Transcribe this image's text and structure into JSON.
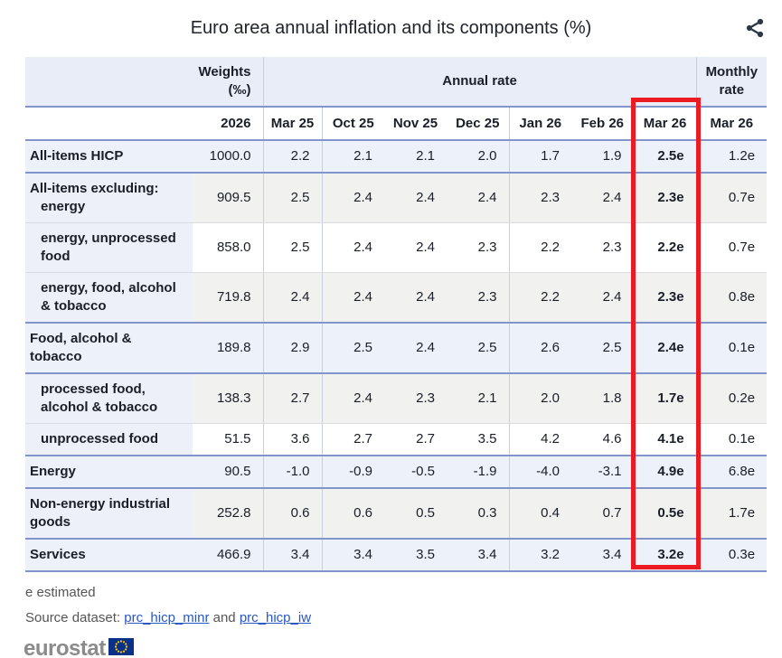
{
  "page": {
    "title": "Euro area annual inflation and its components (%)"
  },
  "chart_data": {
    "type": "table",
    "title": "Euro area annual inflation and its components (%)",
    "header_groups": {
      "weights": "Weights\n(‰)",
      "annual": "Annual rate",
      "monthly": "Monthly\nrate"
    },
    "weights_year": "2026",
    "annual_months": [
      "Mar 25",
      "Oct 25",
      "Nov 25",
      "Dec 25",
      "Jan 26",
      "Feb 26",
      "Mar 26"
    ],
    "monthly_month": "Mar 26",
    "highlighted_column": "Mar 26",
    "rows": [
      {
        "label": "All-items HICP",
        "indent": 0,
        "hang": false,
        "style": "blue",
        "weight": "1000.0",
        "annual": [
          "2.2",
          "2.1",
          "2.1",
          "2.0",
          "1.7",
          "1.9",
          "2.5e"
        ],
        "monthly": "1.2e"
      },
      {
        "label": "All-items excluding:\nenergy",
        "indent": 0,
        "hang": true,
        "style": "gray",
        "weight": "909.5",
        "annual": [
          "2.5",
          "2.4",
          "2.4",
          "2.4",
          "2.3",
          "2.4",
          "2.3e"
        ],
        "monthly": "0.7e"
      },
      {
        "label": "energy, unprocessed food",
        "indent": 1,
        "hang": false,
        "style": "white",
        "weight": "858.0",
        "annual": [
          "2.5",
          "2.4",
          "2.4",
          "2.3",
          "2.2",
          "2.3",
          "2.2e"
        ],
        "monthly": "0.7e"
      },
      {
        "label": "energy, food, alcohol & tobacco",
        "indent": 1,
        "hang": false,
        "style": "gray",
        "weight": "719.8",
        "annual": [
          "2.4",
          "2.4",
          "2.4",
          "2.3",
          "2.2",
          "2.4",
          "2.3e"
        ],
        "monthly": "0.8e"
      },
      {
        "label": "Food, alcohol & tobacco",
        "indent": 0,
        "hang": false,
        "style": "blue",
        "weight": "189.8",
        "annual": [
          "2.9",
          "2.5",
          "2.4",
          "2.5",
          "2.6",
          "2.5",
          "2.4e"
        ],
        "monthly": "0.1e"
      },
      {
        "label": "processed food, alcohol & tobacco",
        "indent": 1,
        "hang": false,
        "style": "gray",
        "weight": "138.3",
        "annual": [
          "2.7",
          "2.4",
          "2.3",
          "2.1",
          "2.0",
          "1.8",
          "1.7e"
        ],
        "monthly": "0.2e"
      },
      {
        "label": "unprocessed food",
        "indent": 1,
        "hang": false,
        "style": "white",
        "weight": "51.5",
        "annual": [
          "3.6",
          "2.7",
          "2.7",
          "3.5",
          "4.2",
          "4.6",
          "4.1e"
        ],
        "monthly": "0.1e"
      },
      {
        "label": "Energy",
        "indent": 0,
        "hang": false,
        "style": "blue",
        "weight": "90.5",
        "annual": [
          "-1.0",
          "-0.9",
          "-0.5",
          "-1.9",
          "-4.0",
          "-3.1",
          "4.9e"
        ],
        "monthly": "6.8e"
      },
      {
        "label": "Non-energy industrial goods",
        "indent": 0,
        "hang": false,
        "style": "gray",
        "weight": "252.8",
        "annual": [
          "0.6",
          "0.6",
          "0.5",
          "0.3",
          "0.4",
          "0.7",
          "0.5e"
        ],
        "monthly": "1.7e"
      },
      {
        "label": "Services",
        "indent": 0,
        "hang": false,
        "style": "blue",
        "weight": "466.9",
        "annual": [
          "3.4",
          "3.4",
          "3.5",
          "3.4",
          "3.2",
          "3.4",
          "3.2e"
        ],
        "monthly": "0.3e"
      }
    ]
  },
  "footer": {
    "footnote": "e estimated",
    "source_prefix": "Source dataset: ",
    "link_minr": "prc_hicp_minr",
    "source_and": " and ",
    "link_iw": "prc_hicp_iw",
    "logo_text": "eurostat"
  },
  "colors": {
    "highlight_box": "#ec1b23",
    "header_bg": "#e9edf8",
    "row_blue": "#edf1fa",
    "row_gray": "#f1f1f0",
    "label_bg": "#eef0f9",
    "blue_line": "#8095ca",
    "link": "#2857c4",
    "flag_blue": "#0a3187",
    "flag_star": "#ffcc00"
  }
}
